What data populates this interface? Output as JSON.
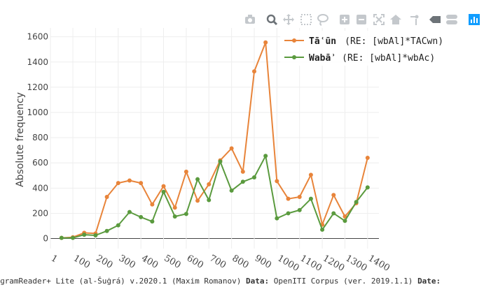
{
  "modebar": {
    "icons": [
      "camera-icon",
      "zoom-icon",
      "pan-icon",
      "box-select-icon",
      "lasso-select-icon",
      "zoom-in-icon",
      "zoom-out-icon",
      "autoscale-icon",
      "reset-axes-icon",
      "spike-lines-icon",
      "hover-closest-icon",
      "hover-compare-icon",
      "plotly-logo-icon"
    ]
  },
  "chart_data": {
    "type": "line",
    "xlabel": "",
    "ylabel": "Absolute frequency",
    "x": [
      50,
      100,
      150,
      200,
      250,
      300,
      350,
      400,
      450,
      500,
      550,
      600,
      650,
      700,
      750,
      800,
      850,
      900,
      950,
      1000,
      1050,
      1100,
      1150,
      1200,
      1250,
      1300,
      1350,
      1400
    ],
    "x_ticks": [
      1,
      100,
      200,
      300,
      400,
      500,
      600,
      700,
      800,
      900,
      1000,
      1100,
      1200,
      1300,
      1400
    ],
    "x_tick_labels": [
      "1",
      "100",
      "200",
      "300",
      "400",
      "500",
      "600",
      "700",
      "800",
      "900",
      "1000",
      "1100",
      "1200",
      "1300",
      "1400"
    ],
    "xlim": [
      1,
      1450
    ],
    "ylim": [
      -80,
      1670
    ],
    "y_ticks": [
      0,
      200,
      400,
      600,
      800,
      1000,
      1200,
      1400,
      1600
    ],
    "grid": true,
    "legend_position": "top-right",
    "series": [
      {
        "name": "Tāʿūn",
        "regex": "(RE: [wbAl]*TACwn)",
        "color": "#e8843a",
        "values": [
          5,
          10,
          45,
          40,
          330,
          440,
          460,
          440,
          270,
          415,
          245,
          530,
          300,
          430,
          620,
          715,
          530,
          1325,
          1555,
          455,
          315,
          330,
          505,
          110,
          345,
          175,
          280,
          640
        ]
      },
      {
        "name": "Wabāʾ",
        "regex": "(RE: [wbAl]*wbAc)",
        "color": "#5a9a3e",
        "values": [
          5,
          5,
          30,
          25,
          60,
          105,
          210,
          170,
          135,
          370,
          175,
          195,
          470,
          305,
          610,
          380,
          450,
          485,
          655,
          160,
          200,
          225,
          315,
          70,
          200,
          140,
          290,
          405
        ]
      }
    ]
  },
  "footer": {
    "app": "ɡramReader+ Lite (al-Šuġrá) v.2020.1 (Maxim Romanov)",
    "data_label": "Data:",
    "data_value": "OpenITI Corpus (ver. 2019.1.1)",
    "date_label": "Date:"
  }
}
